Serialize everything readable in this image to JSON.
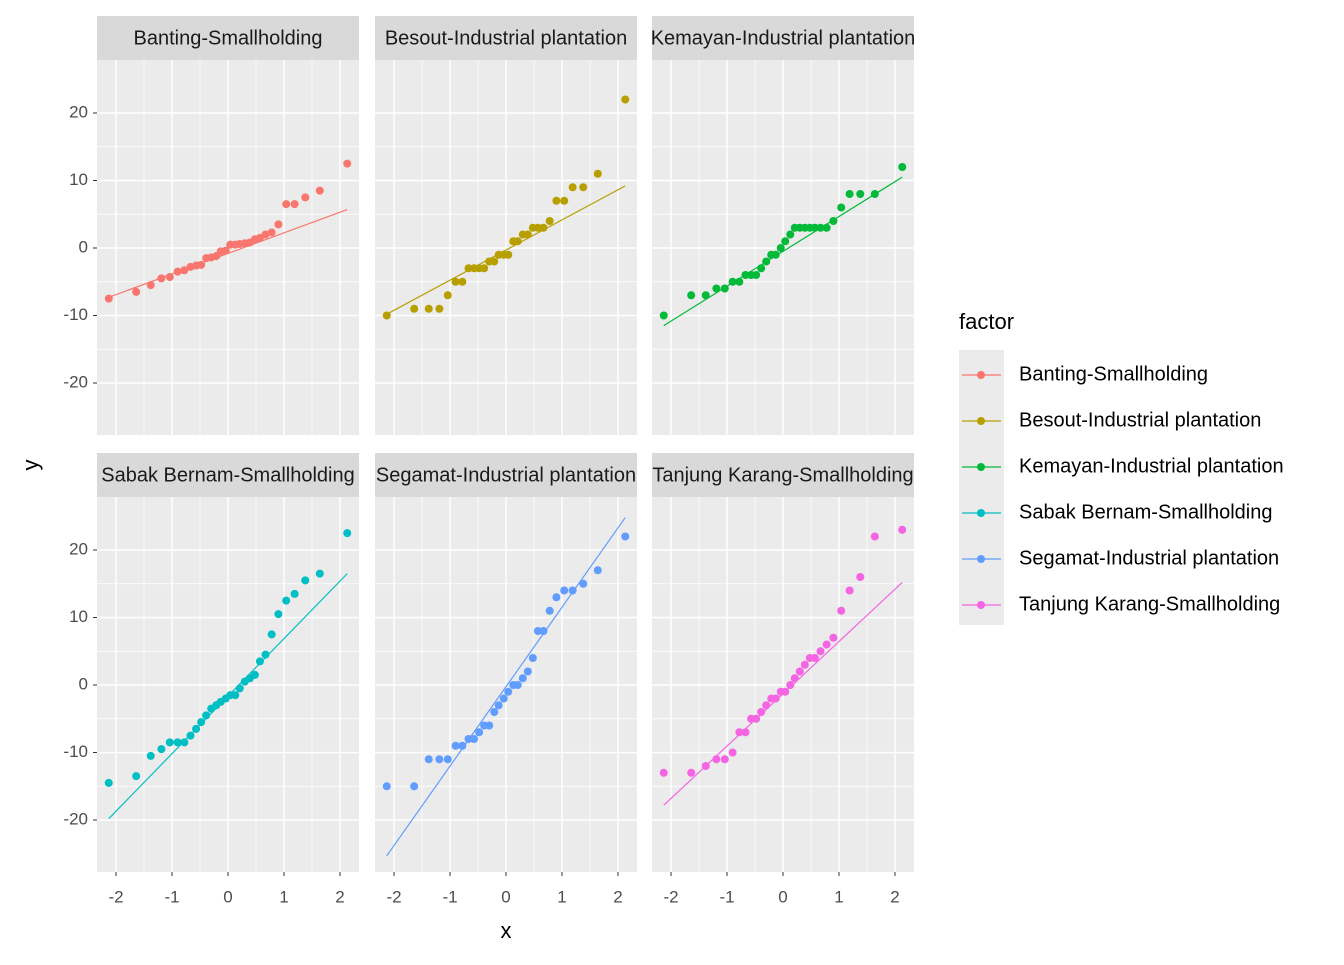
{
  "chart_data": {
    "type": "scatter",
    "xlabel": "x",
    "ylabel": "y",
    "legend_title": "factor",
    "x": [
      -2.13,
      -1.64,
      -1.38,
      -1.19,
      -1.04,
      -0.9,
      -0.78,
      -0.67,
      -0.57,
      -0.48,
      -0.39,
      -0.3,
      -0.21,
      -0.13,
      -0.04,
      0.04,
      0.13,
      0.21,
      0.3,
      0.39,
      0.48,
      0.57,
      0.67,
      0.78,
      0.9,
      1.04,
      1.19,
      1.38,
      1.64,
      2.13
    ],
    "xlim": [
      -2.34,
      2.34
    ],
    "ylim": [
      -27.7,
      27.85
    ],
    "xticks": [
      -2,
      -1,
      0,
      1,
      2
    ],
    "yticks": [
      -20,
      -10,
      0,
      10,
      20
    ],
    "grid": true,
    "series": [
      {
        "name": "Banting-Smallholding",
        "color": "#F8766D",
        "line": [
          -7.3,
          5.7
        ],
        "values": [
          -7.5,
          -6.5,
          -5.5,
          -4.5,
          -4.3,
          -3.5,
          -3.3,
          -2.8,
          -2.6,
          -2.5,
          -1.5,
          -1.4,
          -1.2,
          -0.5,
          -0.4,
          0.5,
          0.5,
          0.6,
          0.7,
          0.8,
          1.3,
          1.5,
          2.0,
          2.3,
          3.5,
          6.5,
          6.5,
          7.5,
          8.5,
          12.5
        ]
      },
      {
        "name": "Besout-Industrial plantation",
        "color": "#B79F00",
        "line": [
          -9.8,
          9.2
        ],
        "values": [
          -10,
          -9,
          -9,
          -9,
          -7,
          -5,
          -5,
          -3,
          -3,
          -3,
          -3,
          -2,
          -2,
          -1,
          -1,
          -1,
          1,
          1,
          2,
          2,
          3,
          3,
          3,
          4,
          7,
          7,
          9,
          9,
          11,
          22
        ]
      },
      {
        "name": "Kemayan-Industrial plantation",
        "color": "#00BA38",
        "line": [
          -11.5,
          10.5
        ],
        "values": [
          -10,
          -7,
          -7,
          -6,
          -6,
          -5,
          -5,
          -4,
          -4,
          -4,
          -3,
          -2,
          -1,
          -1,
          0,
          1,
          2,
          3,
          3,
          3,
          3,
          3,
          3,
          3,
          4,
          6,
          8,
          8,
          8,
          12
        ]
      },
      {
        "name": "Sabak Bernam-Smallholding",
        "color": "#00BFC4",
        "line": [
          -19.8,
          16.5
        ],
        "values": [
          -14.5,
          -13.5,
          -10.5,
          -9.5,
          -8.5,
          -8.5,
          -8.5,
          -7.5,
          -6.5,
          -5.5,
          -4.5,
          -3.5,
          -3,
          -2.5,
          -2,
          -1.5,
          -1.5,
          -0.5,
          0.5,
          1,
          1.5,
          3.5,
          4.5,
          7.5,
          10.5,
          12.5,
          13.5,
          15.5,
          16.5,
          22.5
        ]
      },
      {
        "name": "Segamat-Industrial plantation",
        "color": "#619CFF",
        "line": [
          -25.3,
          24.8
        ],
        "values": [
          -15,
          -15,
          -11,
          -11,
          -11,
          -9,
          -9,
          -8,
          -8,
          -7,
          -6,
          -6,
          -4,
          -3,
          -2,
          -1,
          0,
          0,
          1,
          2,
          4,
          8,
          8,
          11,
          13,
          14,
          14,
          15,
          17,
          22
        ]
      },
      {
        "name": "Tanjung Karang-Smallholding",
        "color": "#F564E3",
        "line": [
          -17.8,
          15.2
        ],
        "values": [
          -13,
          -13,
          -12,
          -11,
          -11,
          -10,
          -7,
          -7,
          -5,
          -5,
          -4,
          -3,
          -2,
          -2,
          -1,
          -1,
          0,
          1,
          2,
          3,
          4,
          4,
          5,
          6,
          7,
          11,
          14,
          16,
          22,
          23
        ]
      }
    ]
  }
}
